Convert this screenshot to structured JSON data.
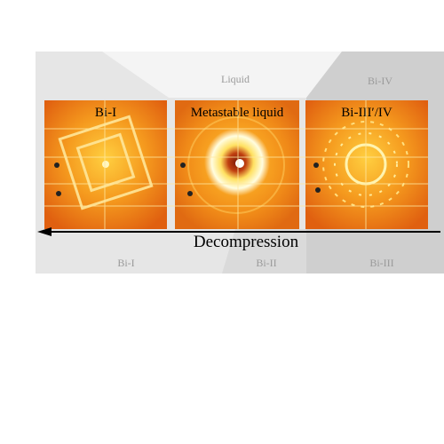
{
  "phase_labels": {
    "top_center": "Liquid",
    "top_right": "Bi-IV",
    "bottom_left": "Bi-I",
    "bottom_center": "Bi-II",
    "bottom_right": "Bi-III"
  },
  "panels": [
    {
      "label": "Bi-I"
    },
    {
      "label": "Metastable liquid"
    },
    {
      "label": "Bi-III′/IV"
    }
  ],
  "arrow": {
    "label": "Decompression"
  }
}
